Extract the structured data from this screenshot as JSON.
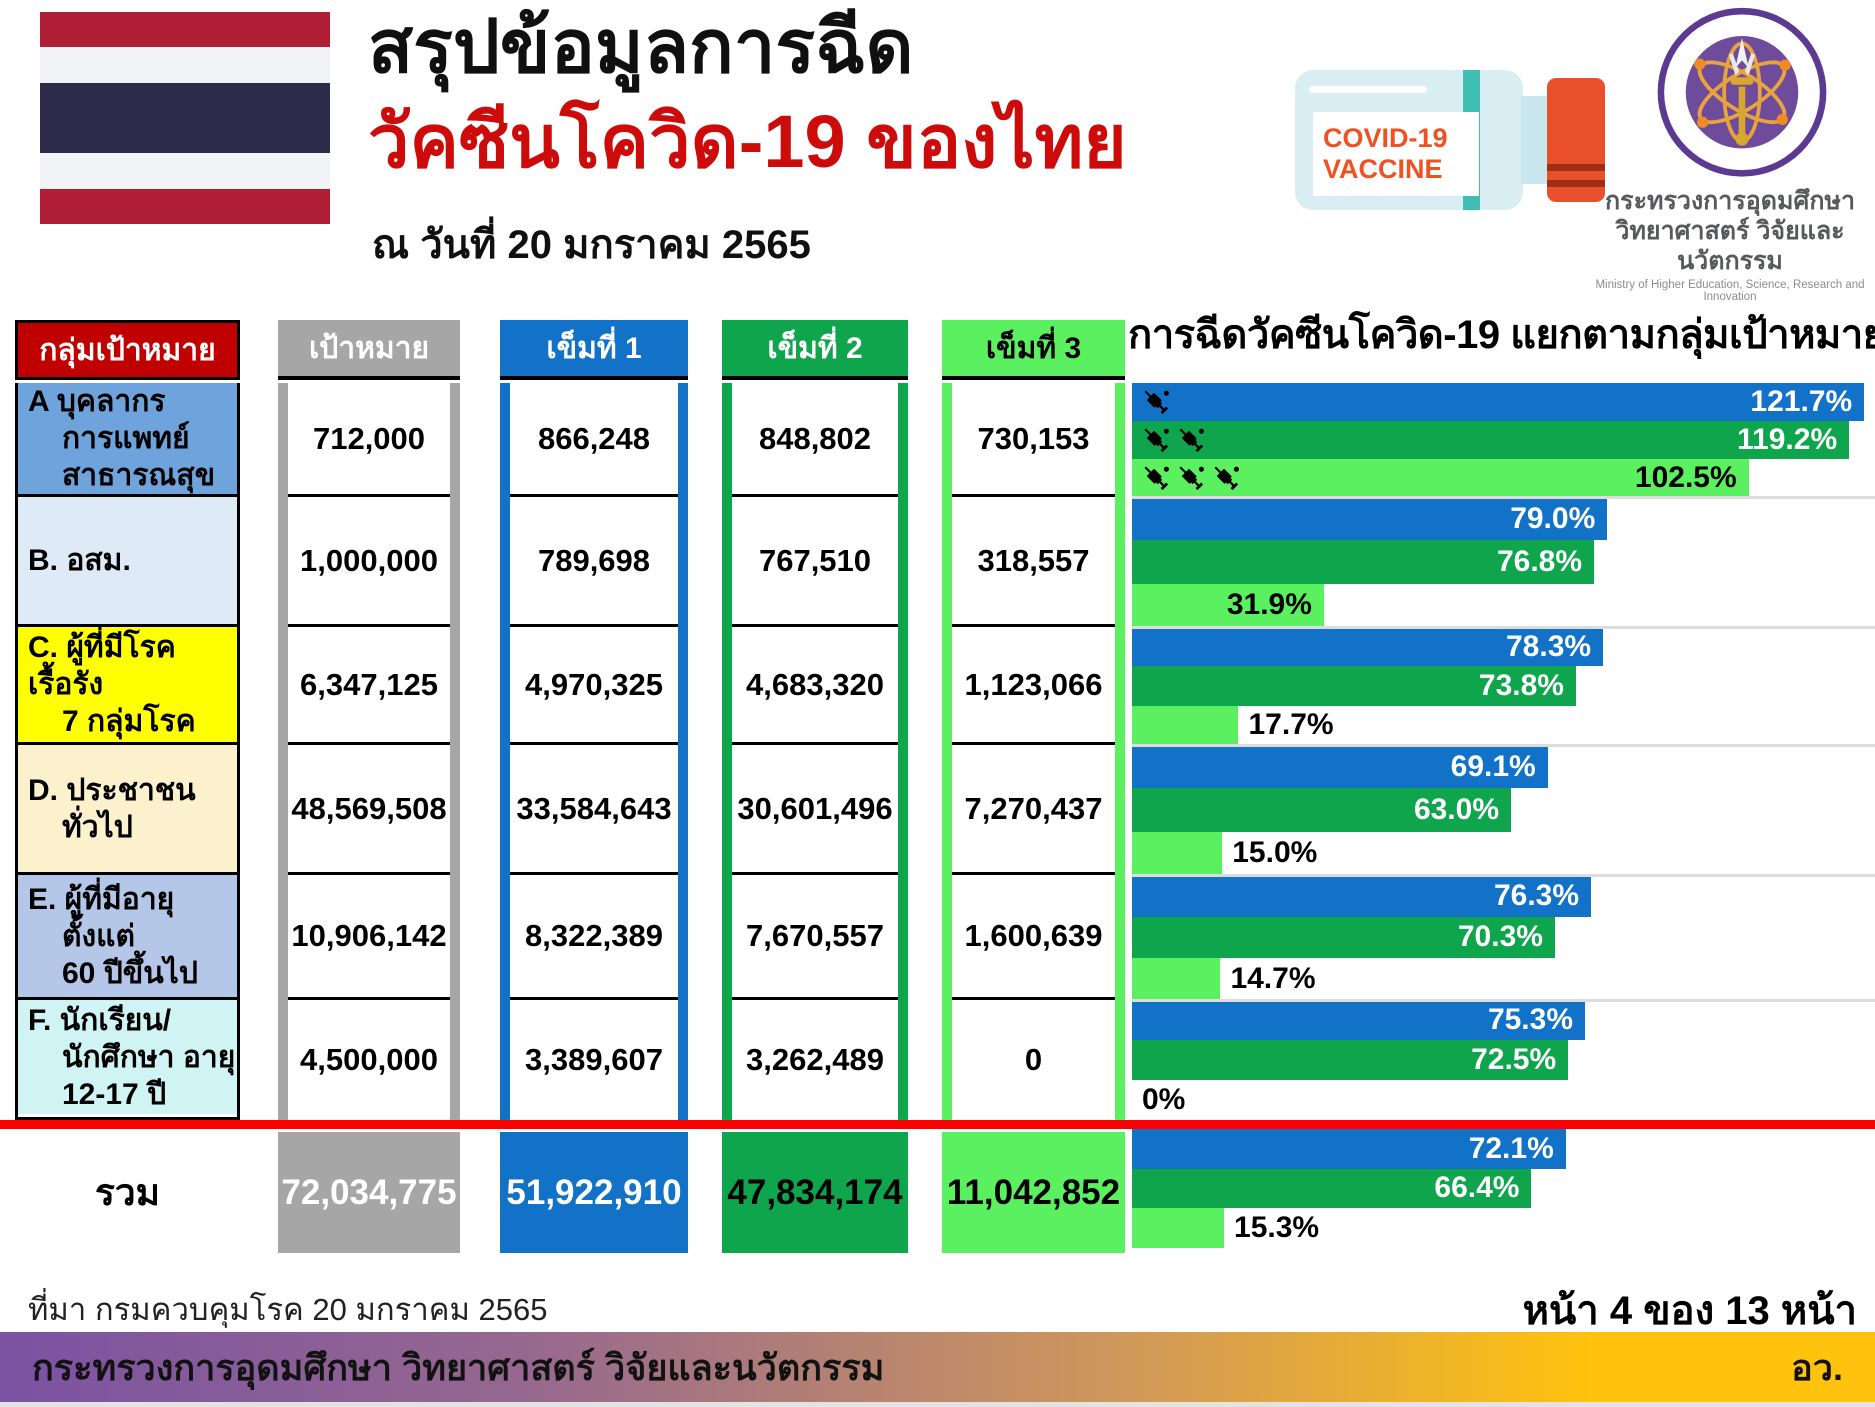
{
  "header": {
    "title_line1": "สรุปข้อมูลการฉีด",
    "title_line2": "วัคซีนโควิด-19 ของไทย",
    "as_of_date": "ณ วันที่ 20 มกราคม 2565",
    "vaccine_bottle_label_line1": "COVID-19",
    "vaccine_bottle_label_line2": "VACCINE",
    "ministry_name_th_line1": "กระทรวงการอุดมศึกษา",
    "ministry_name_th_line2": "วิทยาศาสตร์ วิจัยและนวัตกรรม",
    "ministry_name_en": "Ministry of Higher Education, Science, Research and Innovation"
  },
  "table": {
    "columns": [
      "กลุ่มเป้าหมาย",
      "เป้าหมาย",
      "เข็มที่ 1",
      "เข็มที่ 2",
      "เข็มที่ 3"
    ],
    "header_colors": {
      "group": "#C00000",
      "target": "#A6A6A6",
      "dose1": "#1172C8",
      "dose2": "#0FA54C",
      "dose3": "#5BF05F"
    },
    "rows": [
      {
        "group_lines": [
          "A บุคลากร",
          "การแพทย์",
          "สาธารณสุข"
        ],
        "row_color": "#6FA3DB",
        "target": "712,000",
        "dose1": "866,248",
        "dose2": "848,802",
        "dose3": "730,153"
      },
      {
        "group_lines": [
          "B. อสม."
        ],
        "row_color": "#DEEAF6",
        "target": "1,000,000",
        "dose1": "789,698",
        "dose2": "767,510",
        "dose3": "318,557"
      },
      {
        "group_lines": [
          "C. ผู้ที่มีโรคเรื้อรัง",
          "7 กลุ่มโรค"
        ],
        "row_color": "#FFFF00",
        "target": "6,347,125",
        "dose1": "4,970,325",
        "dose2": "4,683,320",
        "dose3": "1,123,066"
      },
      {
        "group_lines": [
          "D. ประชาชน",
          "ทั่วไป"
        ],
        "row_color": "#FCF1CD",
        "target": "48,569,508",
        "dose1": "33,584,643",
        "dose2": "30,601,496",
        "dose3": "7,270,437"
      },
      {
        "group_lines": [
          "E. ผู้ที่มีอายุ",
          "ตั้งแต่",
          "60 ปีขึ้นไป"
        ],
        "row_color": "#B5C7E8",
        "target": "10,906,142",
        "dose1": "8,322,389",
        "dose2": "7,670,557",
        "dose3": "1,600,639"
      },
      {
        "group_lines": [
          "F. นักเรียน/",
          "นักศึกษา อายุ",
          "12-17 ปี"
        ],
        "row_color": "#D0F4F4",
        "target": "4,500,000",
        "dose1": "3,389,607",
        "dose2": "3,262,489",
        "dose3": "0"
      }
    ],
    "total": {
      "label": "รวม",
      "target": "72,034,775",
      "dose1": "51,922,910",
      "dose2": "47,834,174",
      "dose3": "11,042,852"
    }
  },
  "chart_data": {
    "type": "bar",
    "orientation": "horizontal",
    "title": "การฉีดวัคซีนโควิด-19 แยกตามกลุ่มเป้าหมาย",
    "unit": "%",
    "xlim": [
      0,
      123.5
    ],
    "grid": false,
    "legend_position": "none",
    "categories": [
      "A บุคลากรการแพทย์ สาธารณสุข",
      "B. อสม.",
      "C. ผู้ที่มีโรคเรื้อรัง 7 กลุ่มโรค",
      "D. ประชาชนทั่วไป",
      "E. ผู้ที่มีอายุตั้งแต่ 60 ปีขึ้นไป",
      "F. นักเรียน/นักศึกษา อายุ 12-17 ปี",
      "รวม"
    ],
    "series": [
      {
        "name": "เข็มที่ 1",
        "color": "#1172C8",
        "label_color": "#FFFFFF",
        "values": [
          121.7,
          79.0,
          78.3,
          69.1,
          76.3,
          75.3,
          72.1
        ]
      },
      {
        "name": "เข็มที่ 2",
        "color": "#0FA54C",
        "label_color": "#FFFFFF",
        "values": [
          119.2,
          76.8,
          73.8,
          63.0,
          70.3,
          72.5,
          66.4
        ]
      },
      {
        "name": "เข็มที่ 3",
        "color": "#5BF05F",
        "label_color": "#000000",
        "values": [
          102.5,
          31.9,
          17.7,
          15.0,
          14.7,
          0,
          15.3
        ]
      }
    ],
    "annotations": {
      "syringe_icons_on_row": "A",
      "syringe_counts_by_series": [
        1,
        2,
        3
      ]
    }
  },
  "footer": {
    "source": "ที่มา กรมควบคุมโรค 20 มกราคม 2565",
    "page": "หน้า 4 ของ 13 หน้า",
    "bar_text": "กระทรวงการอุดมศึกษา วิทยาศาสตร์ วิจัยและนวัตกรรม",
    "bar_abbrev": "อว.",
    "bar_gradient": [
      "#7B52A2",
      "#FFC30D"
    ]
  }
}
